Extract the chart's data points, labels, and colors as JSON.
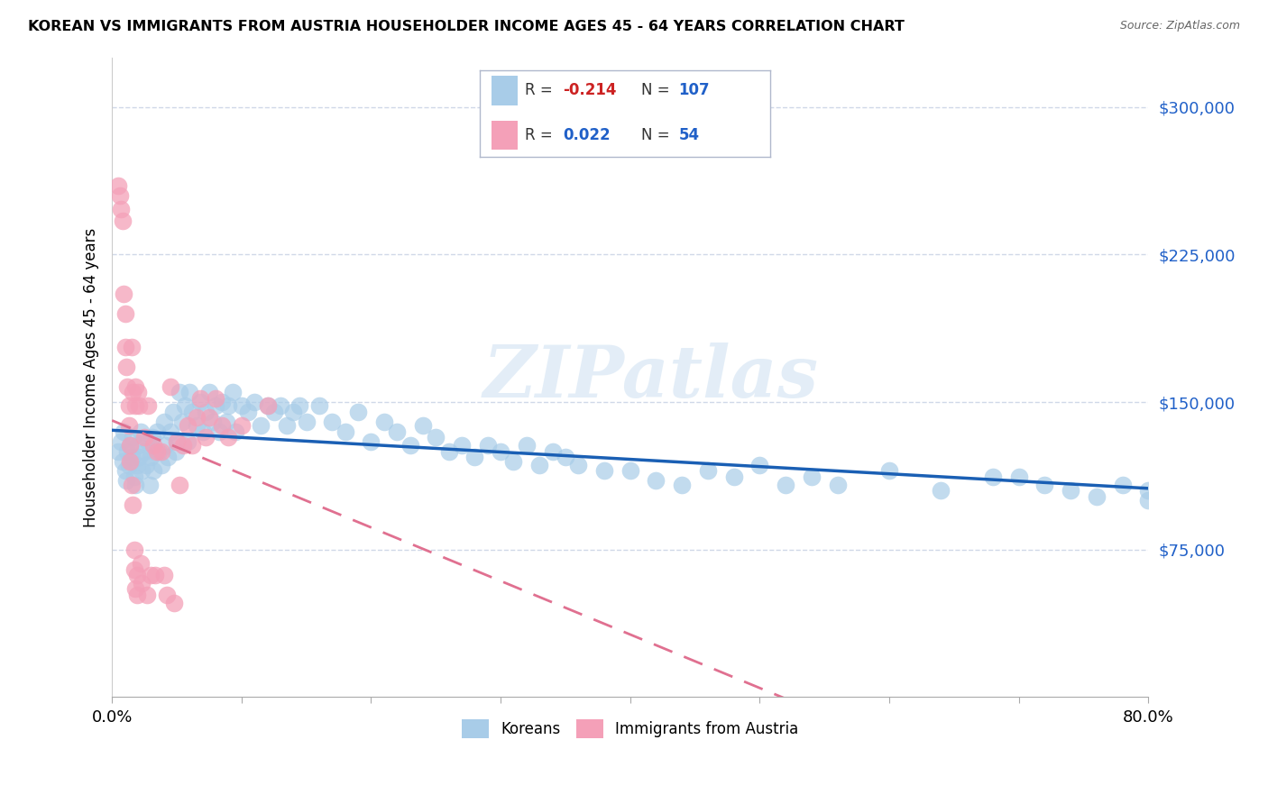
{
  "title": "KOREAN VS IMMIGRANTS FROM AUSTRIA HOUSEHOLDER INCOME AGES 45 - 64 YEARS CORRELATION CHART",
  "source": "Source: ZipAtlas.com",
  "ylabel": "Householder Income Ages 45 - 64 years",
  "xlim": [
    0.0,
    0.8
  ],
  "ylim": [
    0,
    325000
  ],
  "yticks": [
    75000,
    150000,
    225000,
    300000
  ],
  "ytick_labels": [
    "$75,000",
    "$150,000",
    "$225,000",
    "$300,000"
  ],
  "xticks": [
    0.0,
    0.1,
    0.2,
    0.3,
    0.4,
    0.5,
    0.6,
    0.7,
    0.8
  ],
  "korean_color": "#a8cce8",
  "austria_color": "#f4a0b8",
  "korean_line_color": "#1a5fb4",
  "austria_line_color": "#e07090",
  "R_korean": "-0.214",
  "N_korean": "107",
  "R_austria": "0.022",
  "N_austria": "54",
  "legend_label_korean": "Koreans",
  "legend_label_austria": "Immigrants from Austria",
  "watermark": "ZIPatlas",
  "background_color": "#ffffff",
  "grid_color": "#d0d8e8",
  "korean_x": [
    0.005,
    0.007,
    0.008,
    0.009,
    0.01,
    0.011,
    0.012,
    0.013,
    0.014,
    0.015,
    0.016,
    0.017,
    0.018,
    0.019,
    0.02,
    0.021,
    0.022,
    0.023,
    0.025,
    0.026,
    0.028,
    0.029,
    0.03,
    0.031,
    0.032,
    0.033,
    0.035,
    0.036,
    0.038,
    0.04,
    0.041,
    0.043,
    0.045,
    0.047,
    0.049,
    0.05,
    0.052,
    0.054,
    0.056,
    0.058,
    0.06,
    0.062,
    0.065,
    0.068,
    0.07,
    0.072,
    0.075,
    0.078,
    0.08,
    0.083,
    0.085,
    0.088,
    0.09,
    0.093,
    0.095,
    0.1,
    0.105,
    0.11,
    0.115,
    0.12,
    0.125,
    0.13,
    0.135,
    0.14,
    0.145,
    0.15,
    0.16,
    0.17,
    0.18,
    0.19,
    0.2,
    0.21,
    0.22,
    0.23,
    0.24,
    0.25,
    0.26,
    0.27,
    0.28,
    0.29,
    0.3,
    0.31,
    0.32,
    0.33,
    0.34,
    0.35,
    0.36,
    0.38,
    0.4,
    0.42,
    0.44,
    0.46,
    0.48,
    0.5,
    0.52,
    0.54,
    0.56,
    0.6,
    0.64,
    0.68,
    0.7,
    0.72,
    0.74,
    0.76,
    0.78,
    0.8,
    0.8
  ],
  "korean_y": [
    125000,
    130000,
    120000,
    135000,
    115000,
    110000,
    125000,
    118000,
    128000,
    122000,
    132000,
    112000,
    108000,
    118000,
    128000,
    122000,
    135000,
    115000,
    125000,
    118000,
    130000,
    108000,
    122000,
    132000,
    115000,
    125000,
    135000,
    125000,
    118000,
    140000,
    128000,
    122000,
    135000,
    145000,
    125000,
    130000,
    155000,
    140000,
    148000,
    130000,
    155000,
    145000,
    138000,
    150000,
    135000,
    145000,
    155000,
    140000,
    148000,
    135000,
    150000,
    140000,
    148000,
    155000,
    135000,
    148000,
    145000,
    150000,
    138000,
    148000,
    145000,
    148000,
    138000,
    145000,
    148000,
    140000,
    148000,
    140000,
    135000,
    145000,
    130000,
    140000,
    135000,
    128000,
    138000,
    132000,
    125000,
    128000,
    122000,
    128000,
    125000,
    120000,
    128000,
    118000,
    125000,
    122000,
    118000,
    115000,
    115000,
    110000,
    108000,
    115000,
    112000,
    118000,
    108000,
    112000,
    108000,
    115000,
    105000,
    112000,
    112000,
    108000,
    105000,
    102000,
    108000,
    105000,
    100000
  ],
  "austria_x": [
    0.005,
    0.006,
    0.007,
    0.008,
    0.009,
    0.01,
    0.01,
    0.011,
    0.012,
    0.013,
    0.013,
    0.014,
    0.014,
    0.015,
    0.015,
    0.016,
    0.016,
    0.017,
    0.017,
    0.018,
    0.018,
    0.018,
    0.019,
    0.019,
    0.02,
    0.021,
    0.022,
    0.023,
    0.025,
    0.027,
    0.028,
    0.03,
    0.032,
    0.033,
    0.035,
    0.038,
    0.04,
    0.042,
    0.045,
    0.048,
    0.05,
    0.052,
    0.055,
    0.058,
    0.062,
    0.065,
    0.068,
    0.072,
    0.075,
    0.08,
    0.085,
    0.09,
    0.1,
    0.12
  ],
  "austria_y": [
    260000,
    255000,
    248000,
    242000,
    205000,
    195000,
    178000,
    168000,
    158000,
    148000,
    138000,
    128000,
    120000,
    108000,
    178000,
    98000,
    155000,
    75000,
    65000,
    55000,
    158000,
    148000,
    62000,
    52000,
    155000,
    148000,
    68000,
    58000,
    132000,
    52000,
    148000,
    62000,
    128000,
    62000,
    125000,
    125000,
    62000,
    52000,
    158000,
    48000,
    130000,
    108000,
    128000,
    138000,
    128000,
    142000,
    152000,
    132000,
    142000,
    152000,
    138000,
    132000,
    138000,
    148000
  ]
}
